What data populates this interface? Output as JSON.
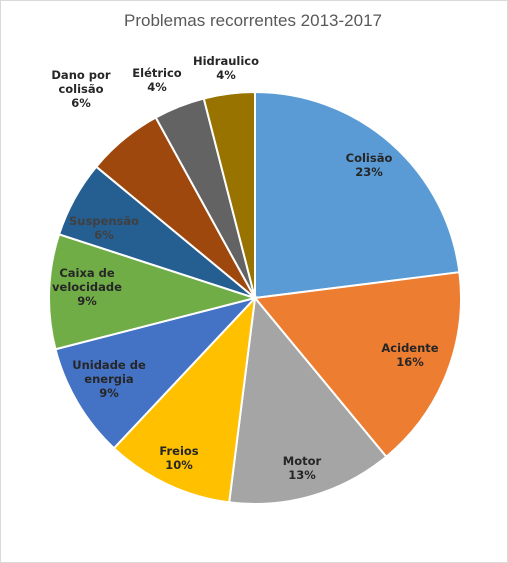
{
  "chart_data": {
    "type": "pie",
    "title": "Problemas recorrentes 2013-2017",
    "slices": [
      {
        "label": "Colisão",
        "value": 23,
        "display": "23%",
        "color": "#5b9bd5",
        "text_color": "#262626"
      },
      {
        "label": "Acidente",
        "value": 16,
        "display": "16%",
        "color": "#ed7d31",
        "text_color": "#262626"
      },
      {
        "label": "Motor",
        "value": 13,
        "display": "13%",
        "color": "#a5a5a5",
        "text_color": "#262626"
      },
      {
        "label": "Freios",
        "value": 10,
        "display": "10%",
        "color": "#ffc000",
        "text_color": "#262626"
      },
      {
        "label": "Unidade de energia",
        "value": 9,
        "display": "9%",
        "color": "#4472c4",
        "text_color": "#262626"
      },
      {
        "label": "Caixa de velocidade",
        "value": 9,
        "display": "9%",
        "color": "#70ad47",
        "text_color": "#262626"
      },
      {
        "label": "Suspensão",
        "value": 6,
        "display": "6%",
        "color": "#255e91",
        "text_color": "#404040"
      },
      {
        "label": "Dano por colisão",
        "value": 6,
        "display": "6%",
        "color": "#9e480e",
        "text_color": "#262626"
      },
      {
        "label": "Elétrico",
        "value": 4,
        "display": "4%",
        "color": "#636363",
        "text_color": "#262626"
      },
      {
        "label": "Hidraulico",
        "value": 4,
        "display": "4%",
        "color": "#997300",
        "text_color": "#262626"
      }
    ],
    "legend": "none",
    "data_labels": "category and percent"
  }
}
